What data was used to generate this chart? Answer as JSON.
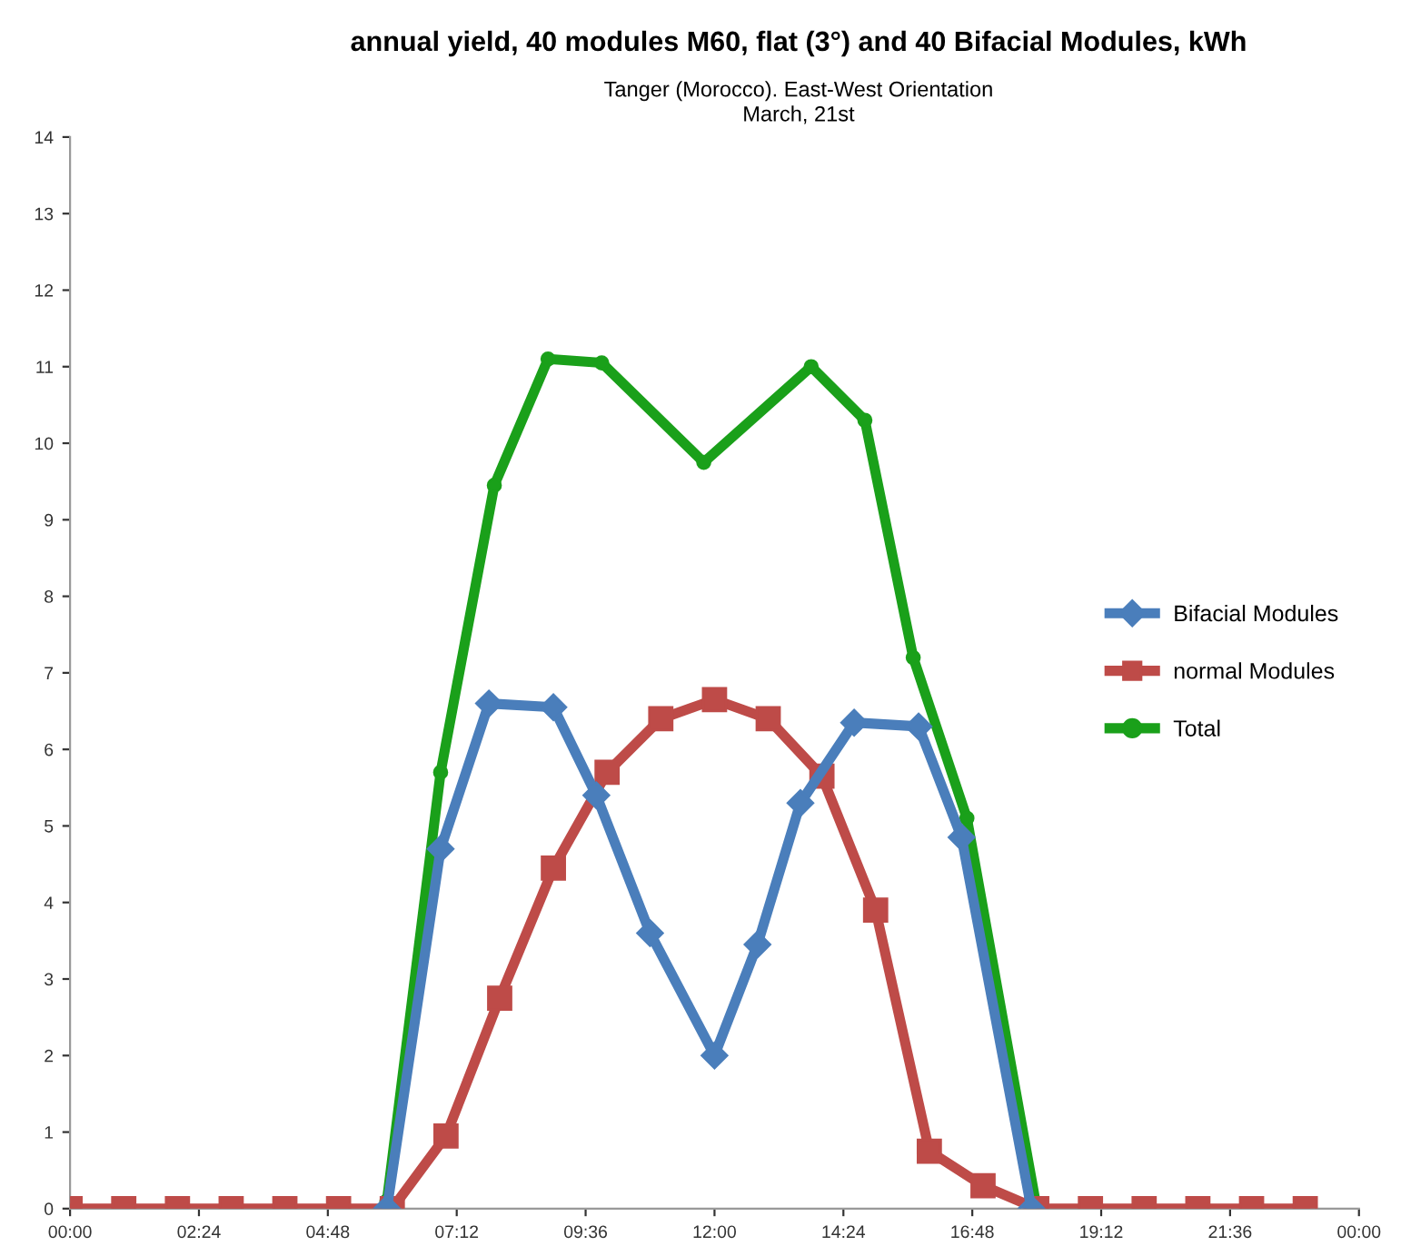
{
  "chart_data": {
    "type": "line",
    "title": "annual yield, 40 modules M60, flat (3°) and 40 Bifacial Modules, kWh",
    "subtitle": "Tanger (Morocco). East-West Orientation\nMarch, 21st",
    "xlim": [
      0,
      24
    ],
    "xticks": [
      {
        "value": 0,
        "label": "00:00"
      },
      {
        "value": 2.4,
        "label": "02:24"
      },
      {
        "value": 4.8,
        "label": "04:48"
      },
      {
        "value": 7.2,
        "label": "07:12"
      },
      {
        "value": 9.6,
        "label": "09:36"
      },
      {
        "value": 12,
        "label": "12:00"
      },
      {
        "value": 14.4,
        "label": "14:24"
      },
      {
        "value": 16.8,
        "label": "16:48"
      },
      {
        "value": 19.2,
        "label": "19:12"
      },
      {
        "value": 21.6,
        "label": "21:36"
      },
      {
        "value": 24,
        "label": "00:00"
      }
    ],
    "ylim": [
      0,
      14
    ],
    "yticks": [
      0,
      1,
      2,
      3,
      4,
      5,
      6,
      7,
      8,
      9,
      10,
      11,
      12,
      13,
      14
    ],
    "grid": false,
    "legend": "right",
    "line_style": "solid",
    "series": [
      {
        "name": "Bifacial Modules",
        "color": "#4a7ebb",
        "marker": "diamond",
        "x": [
          5.9,
          6.9,
          7.8,
          9.0,
          9.8,
          10.8,
          12.0,
          12.8,
          13.6,
          14.6,
          15.8,
          16.6,
          17.9
        ],
        "values": [
          0,
          4.7,
          6.6,
          6.55,
          5.4,
          3.6,
          2.0,
          3.45,
          5.3,
          6.35,
          6.3,
          4.85,
          0
        ]
      },
      {
        "name": "normal Modules",
        "color": "#be4b48",
        "marker": "square",
        "x": [
          0,
          1,
          2,
          3,
          4,
          5,
          6,
          7,
          8,
          9,
          10,
          11,
          12,
          13,
          14,
          15,
          16,
          17,
          18,
          19,
          20,
          21,
          22,
          23
        ],
        "values": [
          0,
          0,
          0,
          0,
          0,
          0,
          0,
          0.95,
          2.75,
          4.45,
          5.7,
          6.4,
          6.65,
          6.4,
          5.65,
          3.9,
          0.75,
          0.3,
          0,
          0,
          0,
          0,
          0,
          0
        ]
      },
      {
        "name": "Total",
        "color": "#1aa01a",
        "marker": "circle",
        "x": [
          5.9,
          6.9,
          7.9,
          8.9,
          9.9,
          11.8,
          13.8,
          14.8,
          15.7,
          16.7,
          18.0
        ],
        "values": [
          0.1,
          5.7,
          9.45,
          11.1,
          11.05,
          9.75,
          11.0,
          10.3,
          7.2,
          5.1,
          0
        ]
      }
    ]
  }
}
